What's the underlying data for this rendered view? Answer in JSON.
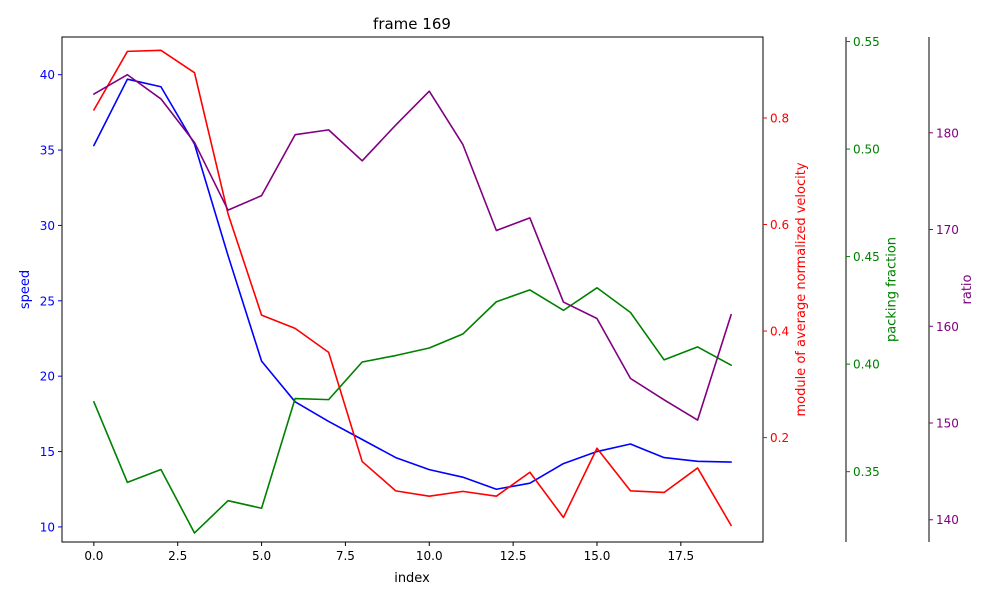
{
  "chart_data": {
    "type": "line",
    "title": "frame 169",
    "xlabel": "index",
    "x": [
      0,
      1,
      2,
      3,
      4,
      5,
      6,
      7,
      8,
      9,
      10,
      11,
      12,
      13,
      14,
      15,
      16,
      17,
      18,
      19
    ],
    "xlim": [
      -0.95,
      19.95
    ],
    "xticks": [
      0.0,
      2.5,
      5.0,
      7.5,
      10.0,
      12.5,
      15.0,
      17.5
    ],
    "xtick_labels": [
      "0.0",
      "2.5",
      "5.0",
      "7.5",
      "10.0",
      "12.5",
      "15.0",
      "17.5"
    ],
    "grid": false,
    "legend": "none",
    "axes": [
      {
        "id": "speed",
        "label": "speed",
        "color": "#0000ff",
        "side": "left",
        "ylim": [
          9.0,
          42.5
        ],
        "ticks": [
          10,
          15,
          20,
          25,
          30,
          35,
          40
        ],
        "tick_labels": [
          "10",
          "15",
          "20",
          "25",
          "30",
          "35",
          "40"
        ]
      },
      {
        "id": "velocity",
        "label": "module of average normalized velocity",
        "color": "#ff0000",
        "side": "right",
        "ylim": [
          0.004,
          0.952
        ],
        "ticks": [
          0.2,
          0.4,
          0.6,
          0.8
        ],
        "tick_labels": [
          "0.2",
          "0.4",
          "0.6",
          "0.8"
        ]
      },
      {
        "id": "packing",
        "label": "packing fraction",
        "color": "#008000",
        "side": "right",
        "ylim": [
          0.3173,
          0.5521
        ],
        "ticks": [
          0.35,
          0.4,
          0.45,
          0.5,
          0.55
        ],
        "tick_labels": [
          "0.35",
          "0.40",
          "0.45",
          "0.50",
          "0.55"
        ]
      },
      {
        "id": "ratio",
        "label": "ratio",
        "color": "#800080",
        "side": "right",
        "ylim": [
          137.7,
          189.9
        ],
        "ticks": [
          140,
          150,
          160,
          170,
          180
        ],
        "tick_labels": [
          "140",
          "150",
          "160",
          "170",
          "180"
        ]
      }
    ],
    "series": [
      {
        "axis": "speed",
        "color": "#0000ff",
        "values": [
          35.3,
          39.7,
          39.2,
          35.4,
          28.0,
          21.0,
          18.3,
          17.0,
          15.8,
          14.6,
          13.8,
          13.3,
          12.5,
          12.9,
          14.2,
          15.0,
          15.5,
          14.6,
          14.35,
          14.3
        ]
      },
      {
        "axis": "velocity",
        "color": "#ff0000",
        "values": [
          0.815,
          0.925,
          0.927,
          0.885,
          0.62,
          0.43,
          0.405,
          0.36,
          0.155,
          0.1,
          0.09,
          0.099,
          0.09,
          0.135,
          0.05,
          0.18,
          0.1,
          0.097,
          0.143,
          0.035
        ]
      },
      {
        "axis": "packing",
        "color": "#008000",
        "values": [
          0.3825,
          0.345,
          0.351,
          0.3215,
          0.3365,
          0.333,
          0.384,
          0.3835,
          0.401,
          0.404,
          0.4075,
          0.414,
          0.429,
          0.4345,
          0.425,
          0.4355,
          0.424,
          0.402,
          0.408,
          0.3995
        ]
      },
      {
        "axis": "ratio",
        "color": "#800080",
        "values": [
          184.0,
          186.0,
          183.5,
          179.0,
          172.0,
          173.5,
          179.8,
          180.3,
          177.1,
          180.8,
          184.3,
          178.8,
          169.9,
          171.2,
          162.5,
          160.8,
          154.6,
          152.4,
          150.3,
          161.2
        ]
      }
    ]
  }
}
